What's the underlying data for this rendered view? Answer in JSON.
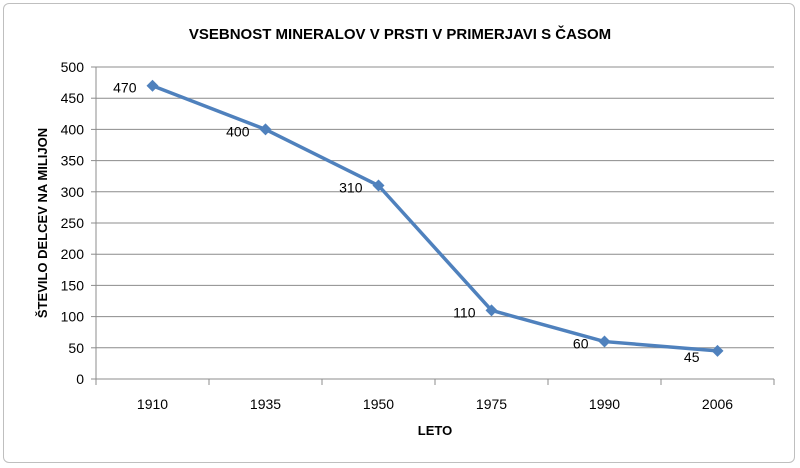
{
  "chart_data": {
    "type": "line",
    "title": "VSEBNOST MINERALOV V PRSTI V PRIMERJAVI S ČASOM",
    "xlabel": "LETO",
    "ylabel": "ŠTEVILO DELCEV NA MILIJON",
    "categories": [
      "1910",
      "1935",
      "1950",
      "1975",
      "1990",
      "2006"
    ],
    "series": [
      {
        "values": [
          470,
          400,
          310,
          110,
          60,
          45
        ]
      }
    ],
    "data_labels": [
      "470",
      "400",
      "310",
      "110",
      "60",
      "45"
    ],
    "ylim": [
      0,
      500
    ],
    "yticks": [
      "0",
      "50",
      "100",
      "150",
      "200",
      "250",
      "300",
      "350",
      "400",
      "450",
      "500"
    ],
    "grid": "horizontal",
    "legend": "none",
    "colors": {
      "line": "#4f81bd",
      "grid": "#8c8c8c",
      "axis": "#8c8c8c"
    }
  }
}
